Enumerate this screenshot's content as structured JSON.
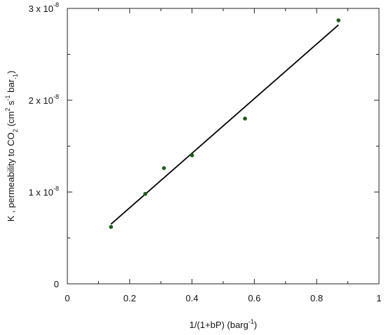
{
  "chart_data": {
    "type": "scatter",
    "title": "",
    "xlabel_main": "1/(1+bP)  (barg",
    "xlabel_sup": "-1",
    "xlabel_end": ")",
    "ylabel_main": "K , permeability to CO",
    "ylabel_sub": "2",
    "ylabel_mid1": " (cm",
    "ylabel_sup1": "2",
    "ylabel_mid2": " s",
    "ylabel_sup2": "-1",
    "ylabel_mid3": " bar",
    "ylabel_sub2": "-1",
    "ylabel_end": ")",
    "xlim": [
      0,
      1
    ],
    "ylim": [
      0,
      3e-08
    ],
    "x_ticks": [
      {
        "value": 0,
        "label": "0"
      },
      {
        "value": 0.2,
        "label": "0.2"
      },
      {
        "value": 0.4,
        "label": "0.4"
      },
      {
        "value": 0.6,
        "label": "0.6"
      },
      {
        "value": 0.8,
        "label": "0.8"
      },
      {
        "value": 1,
        "label": "1"
      }
    ],
    "y_ticks": [
      {
        "value": 0,
        "label": "0",
        "exp": ""
      },
      {
        "value": 1e-08,
        "label": "1 x 10",
        "exp": "-8"
      },
      {
        "value": 2e-08,
        "label": "2 x 10",
        "exp": "-8"
      },
      {
        "value": 3e-08,
        "label": "3 x 10",
        "exp": "-8"
      }
    ],
    "series": [
      {
        "marker_color": "#1a5c1a",
        "points": [
          {
            "x": 0.14,
            "y": 6.2e-09
          },
          {
            "x": 0.25,
            "y": 9.8e-09
          },
          {
            "x": 0.31,
            "y": 1.26e-08
          },
          {
            "x": 0.4,
            "y": 1.4e-08
          },
          {
            "x": 0.57,
            "y": 1.8e-08
          },
          {
            "x": 0.87,
            "y": 2.87e-08
          }
        ]
      }
    ],
    "fit_line": {
      "color": "#000000",
      "start": {
        "x": 0.14,
        "y": 6.5e-09
      },
      "end": {
        "x": 0.87,
        "y": 2.82e-08
      }
    },
    "grid": false,
    "legend": "none"
  }
}
